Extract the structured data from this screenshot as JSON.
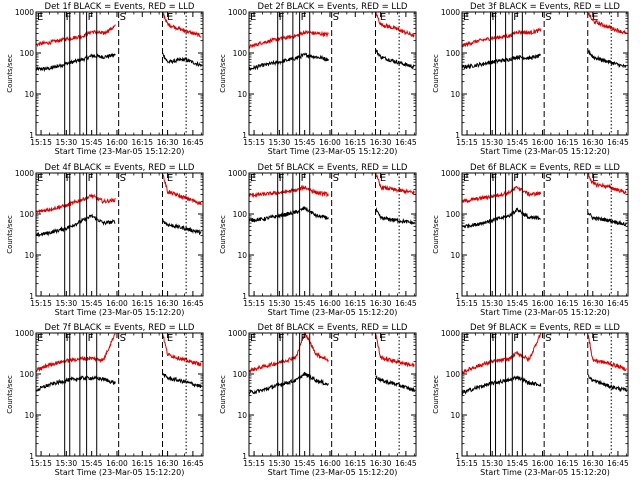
{
  "figure": {
    "background": "#ffffff"
  },
  "colors": {
    "events": "#000000",
    "lld": "#e00000",
    "axis": "#000000"
  },
  "chart_data": [
    {
      "type": "line",
      "title": "Det 1f BLACK = Events, RED = LLD",
      "xlabel": "Start Time (23-Mar-05 15:12:20)",
      "ylabel": "Counts/sec",
      "xticks": [
        "15:15",
        "15:30",
        "15:45",
        "16:00",
        "16:15",
        "16:30",
        "16:45"
      ],
      "yticks": [
        "1",
        "10",
        "100",
        "1000"
      ],
      "ylim": [
        1,
        1000
      ],
      "ylog": true,
      "x": [
        "15:12",
        "15:20",
        "15:30",
        "15:40",
        "15:45",
        "15:52",
        "15:59",
        "16:01",
        "16:25",
        "16:27",
        "16:30",
        "16:40",
        "16:50"
      ],
      "series": [
        {
          "name": "Events",
          "color": "#000000",
          "values": [
            40,
            42,
            55,
            70,
            85,
            80,
            90,
            null,
            null,
            100,
            60,
            70,
            50
          ]
        },
        {
          "name": "LLD",
          "color": "#e00000",
          "values": [
            160,
            180,
            220,
            260,
            330,
            300,
            450,
            null,
            null,
            1000,
            500,
            350,
            260
          ]
        }
      ],
      "markers": [
        {
          "label": "E",
          "x": "15:12"
        },
        {
          "label": "F",
          "x": "15:29"
        },
        {
          "label": "F",
          "x": "15:42"
        },
        {
          "label": "S",
          "x": "16:01"
        },
        {
          "label": "E",
          "x": "16:29"
        }
      ]
    },
    {
      "type": "line",
      "title": "Det 2f BLACK = Events, RED = LLD",
      "xlabel": "Start Time (23-Mar-05 15:12:20)",
      "ylabel": "Counts/sec",
      "xticks": [
        "15:15",
        "15:30",
        "15:45",
        "16:00",
        "16:15",
        "16:30",
        "16:45"
      ],
      "yticks": [
        "1",
        "10",
        "100",
        "1000"
      ],
      "ylim": [
        1,
        1000
      ],
      "ylog": true,
      "x": [
        "15:12",
        "15:20",
        "15:30",
        "15:40",
        "15:45",
        "15:52",
        "15:59",
        "16:01",
        "16:25",
        "16:27",
        "16:30",
        "16:40",
        "16:50"
      ],
      "series": [
        {
          "name": "Events",
          "color": "#000000",
          "values": [
            40,
            50,
            60,
            75,
            90,
            80,
            70,
            null,
            null,
            120,
            80,
            60,
            45
          ]
        },
        {
          "name": "LLD",
          "color": "#e00000",
          "values": [
            140,
            180,
            220,
            260,
            320,
            300,
            280,
            null,
            null,
            1000,
            500,
            380,
            260
          ]
        }
      ],
      "markers": [
        {
          "label": "E",
          "x": "15:12"
        },
        {
          "label": "F",
          "x": "15:29"
        },
        {
          "label": "F",
          "x": "15:42"
        },
        {
          "label": "S",
          "x": "16:01"
        },
        {
          "label": "E",
          "x": "16:29"
        }
      ]
    },
    {
      "type": "line",
      "title": "Det 3f BLACK = Events, RED = LLD",
      "xlabel": "Start Time (23-Mar-05 15:12:20)",
      "ylabel": "Counts/sec",
      "xticks": [
        "15:15",
        "15:30",
        "15:45",
        "16:00",
        "16:15",
        "16:30",
        "16:45"
      ],
      "yticks": [
        "1",
        "10",
        "100",
        "1000"
      ],
      "ylim": [
        1,
        1000
      ],
      "ylog": true,
      "x": [
        "15:12",
        "15:20",
        "15:30",
        "15:40",
        "15:45",
        "15:52",
        "15:59",
        "16:01",
        "16:25",
        "16:27",
        "16:30",
        "16:40",
        "16:50"
      ],
      "series": [
        {
          "name": "Events",
          "color": "#000000",
          "values": [
            45,
            50,
            60,
            70,
            80,
            75,
            85,
            null,
            null,
            120,
            80,
            60,
            45
          ]
        },
        {
          "name": "LLD",
          "color": "#e00000",
          "values": [
            150,
            190,
            230,
            260,
            330,
            310,
            360,
            null,
            null,
            1000,
            600,
            420,
            300
          ]
        }
      ],
      "markers": [
        {
          "label": "E",
          "x": "15:12"
        },
        {
          "label": "F",
          "x": "15:29"
        },
        {
          "label": "F",
          "x": "15:42"
        },
        {
          "label": "S",
          "x": "16:01"
        },
        {
          "label": "E",
          "x": "16:29"
        }
      ]
    },
    {
      "type": "line",
      "title": "Det 4f BLACK = Events, RED = LLD",
      "xlabel": "Start Time (23-Mar-05 15:12:20)",
      "ylabel": "Counts/sec",
      "xticks": [
        "15:15",
        "15:30",
        "15:45",
        "16:00",
        "16:15",
        "16:30",
        "16:45"
      ],
      "yticks": [
        "1",
        "10",
        "100",
        "1000"
      ],
      "ylim": [
        1,
        1000
      ],
      "ylog": true,
      "x": [
        "15:12",
        "15:20",
        "15:30",
        "15:40",
        "15:45",
        "15:52",
        "15:59",
        "16:01",
        "16:25",
        "16:27",
        "16:30",
        "16:40",
        "16:50"
      ],
      "series": [
        {
          "name": "Events",
          "color": "#000000",
          "values": [
            30,
            35,
            45,
            70,
            90,
            60,
            65,
            null,
            null,
            70,
            55,
            45,
            35
          ]
        },
        {
          "name": "LLD",
          "color": "#e00000",
          "values": [
            110,
            130,
            160,
            230,
            280,
            200,
            220,
            null,
            null,
            1000,
            350,
            250,
            180
          ]
        }
      ],
      "markers": [
        {
          "label": "E",
          "x": "15:12"
        },
        {
          "label": "F",
          "x": "15:29"
        },
        {
          "label": "F",
          "x": "15:42"
        },
        {
          "label": "S",
          "x": "16:01"
        },
        {
          "label": "E",
          "x": "16:29"
        }
      ]
    },
    {
      "type": "line",
      "title": "Det 5f BLACK = Events, RED = LLD",
      "xlabel": "Start Time (23-Mar-05 15:12:20)",
      "ylabel": "Counts/sec",
      "xticks": [
        "15:15",
        "15:30",
        "15:45",
        "16:00",
        "16:15",
        "16:30",
        "16:45"
      ],
      "yticks": [
        "1",
        "10",
        "100",
        "1000"
      ],
      "ylim": [
        1,
        1000
      ],
      "ylog": true,
      "x": [
        "15:12",
        "15:20",
        "15:30",
        "15:40",
        "15:45",
        "15:52",
        "15:59",
        "16:01",
        "16:25",
        "16:27",
        "16:30",
        "16:40",
        "16:50"
      ],
      "series": [
        {
          "name": "Events",
          "color": "#000000",
          "values": [
            70,
            75,
            90,
            110,
            140,
            90,
            80,
            null,
            null,
            130,
            80,
            70,
            60
          ]
        },
        {
          "name": "LLD",
          "color": "#e00000",
          "values": [
            290,
            300,
            330,
            380,
            450,
            330,
            300,
            null,
            null,
            1000,
            450,
            380,
            330
          ]
        }
      ],
      "markers": [
        {
          "label": "E",
          "x": "15:12"
        },
        {
          "label": "F",
          "x": "15:29"
        },
        {
          "label": "F",
          "x": "15:42"
        },
        {
          "label": "S",
          "x": "16:01"
        },
        {
          "label": "E",
          "x": "16:29"
        }
      ]
    },
    {
      "type": "line",
      "title": "Det 6f BLACK = Events, RED = LLD",
      "xlabel": "Start Time (23-Mar-05 15:12:20)",
      "ylabel": "Counts/sec",
      "xticks": [
        "15:15",
        "15:30",
        "15:45",
        "16:00",
        "16:15",
        "16:30",
        "16:45"
      ],
      "yticks": [
        "1",
        "10",
        "100",
        "1000"
      ],
      "ylim": [
        1,
        1000
      ],
      "ylog": true,
      "x": [
        "15:12",
        "15:20",
        "15:30",
        "15:40",
        "15:45",
        "15:52",
        "15:59",
        "16:01",
        "16:25",
        "16:27",
        "16:30",
        "16:40",
        "16:50"
      ],
      "series": [
        {
          "name": "Events",
          "color": "#000000",
          "values": [
            50,
            55,
            70,
            90,
            130,
            80,
            80,
            null,
            null,
            110,
            80,
            70,
            55
          ]
        },
        {
          "name": "LLD",
          "color": "#e00000",
          "values": [
            200,
            230,
            270,
            330,
            450,
            300,
            320,
            null,
            null,
            1000,
            550,
            450,
            330
          ]
        }
      ],
      "markers": [
        {
          "label": "E",
          "x": "15:12"
        },
        {
          "label": "F",
          "x": "15:29"
        },
        {
          "label": "F",
          "x": "15:42"
        },
        {
          "label": "S",
          "x": "16:01"
        },
        {
          "label": "E",
          "x": "16:29"
        }
      ]
    },
    {
      "type": "line",
      "title": "Det 7f BLACK = Events, RED = LLD",
      "xlabel": "Start Time (23-Mar-05 15:12:20)",
      "ylabel": "Counts/sec",
      "xticks": [
        "15:15",
        "15:30",
        "15:45",
        "16:00",
        "16:15",
        "16:30",
        "16:45"
      ],
      "yticks": [
        "1",
        "10",
        "100",
        "1000"
      ],
      "ylim": [
        1,
        1000
      ],
      "ylog": true,
      "x": [
        "15:12",
        "15:20",
        "15:30",
        "15:40",
        "15:45",
        "15:52",
        "15:59",
        "16:01",
        "16:25",
        "16:27",
        "16:30",
        "16:40",
        "16:50"
      ],
      "series": [
        {
          "name": "Events",
          "color": "#000000",
          "values": [
            40,
            55,
            70,
            80,
            80,
            75,
            60,
            null,
            null,
            100,
            80,
            65,
            50
          ]
        },
        {
          "name": "LLD",
          "color": "#e00000",
          "values": [
            120,
            170,
            210,
            240,
            240,
            220,
            1000,
            null,
            null,
            1000,
            300,
            220,
            170
          ]
        }
      ],
      "markers": [
        {
          "label": "E",
          "x": "15:12"
        },
        {
          "label": "F",
          "x": "15:29"
        },
        {
          "label": "F",
          "x": "15:42"
        },
        {
          "label": "S",
          "x": "16:01"
        },
        {
          "label": "E",
          "x": "16:29"
        }
      ]
    },
    {
      "type": "line",
      "title": "Det 8f BLACK = Events, RED = LLD",
      "xlabel": "Start Time (23-Mar-05 15:12:20)",
      "ylabel": "Counts/sec",
      "xticks": [
        "15:15",
        "15:30",
        "15:45",
        "16:00",
        "16:15",
        "16:30",
        "16:45"
      ],
      "yticks": [
        "1",
        "10",
        "100",
        "1000"
      ],
      "ylim": [
        1,
        1000
      ],
      "ylog": true,
      "x": [
        "15:12",
        "15:20",
        "15:30",
        "15:40",
        "15:45",
        "15:52",
        "15:59",
        "16:01",
        "16:25",
        "16:27",
        "16:30",
        "16:40",
        "16:50"
      ],
      "series": [
        {
          "name": "Events",
          "color": "#000000",
          "values": [
            35,
            40,
            55,
            70,
            100,
            70,
            55,
            null,
            null,
            90,
            70,
            55,
            40
          ]
        },
        {
          "name": "LLD",
          "color": "#e00000",
          "values": [
            120,
            150,
            190,
            260,
            1000,
            300,
            220,
            null,
            null,
            1000,
            250,
            200,
            160
          ]
        }
      ],
      "markers": [
        {
          "label": "E",
          "x": "15:12"
        },
        {
          "label": "F",
          "x": "15:29"
        },
        {
          "label": "F",
          "x": "15:42"
        },
        {
          "label": "S",
          "x": "16:01"
        },
        {
          "label": "E",
          "x": "16:29"
        }
      ]
    },
    {
      "type": "line",
      "title": "Det 9f BLACK = Events, RED = LLD",
      "xlabel": "Start Time (23-Mar-05 15:12:20)",
      "ylabel": "Counts/sec",
      "xticks": [
        "15:15",
        "15:30",
        "15:45",
        "16:00",
        "16:15",
        "16:30",
        "16:45"
      ],
      "yticks": [
        "1",
        "10",
        "100",
        "1000"
      ],
      "ylim": [
        1,
        1000
      ],
      "ylog": true,
      "x": [
        "15:12",
        "15:20",
        "15:30",
        "15:40",
        "15:45",
        "15:52",
        "15:59",
        "16:01",
        "16:25",
        "16:27",
        "16:30",
        "16:40",
        "16:50"
      ],
      "series": [
        {
          "name": "Events",
          "color": "#000000",
          "values": [
            35,
            45,
            60,
            70,
            85,
            60,
            55,
            null,
            null,
            90,
            70,
            50,
            40
          ]
        },
        {
          "name": "LLD",
          "color": "#e00000",
          "values": [
            110,
            150,
            200,
            230,
            330,
            220,
            1000,
            null,
            null,
            1000,
            220,
            180,
            130
          ]
        }
      ],
      "markers": [
        {
          "label": "E",
          "x": "15:12"
        },
        {
          "label": "F",
          "x": "15:29"
        },
        {
          "label": "F",
          "x": "15:42"
        },
        {
          "label": "S",
          "x": "16:01"
        },
        {
          "label": "E",
          "x": "16:29"
        }
      ]
    }
  ]
}
